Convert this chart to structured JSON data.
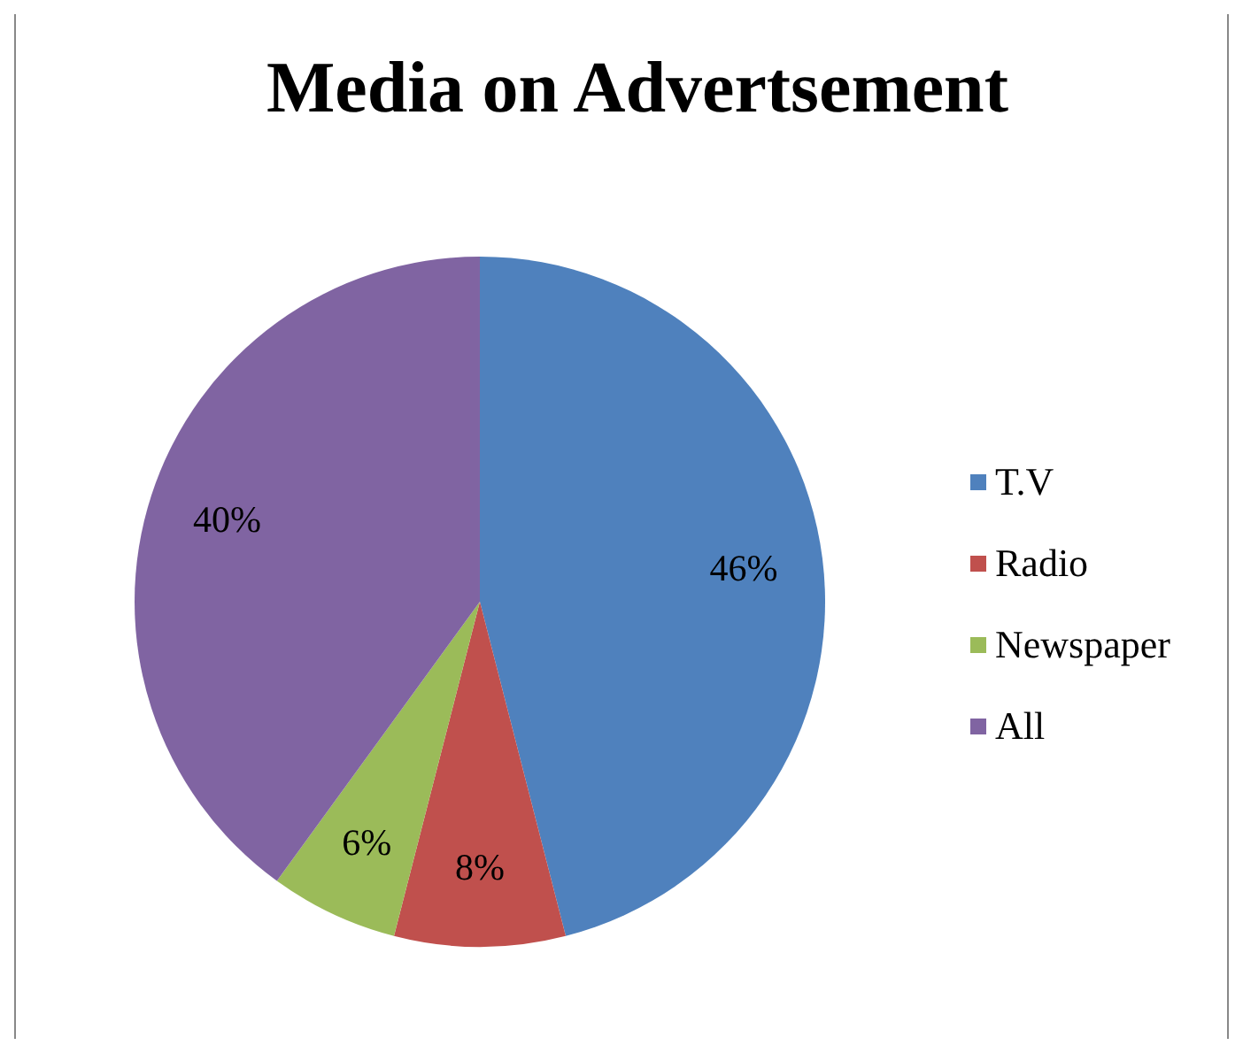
{
  "chart_data": {
    "type": "pie",
    "title": "Media on Advertsement",
    "categories": [
      "T.V",
      "Radio",
      "Newspaper",
      "All"
    ],
    "values": [
      46,
      8,
      6,
      40
    ],
    "colors": [
      "#4f81bd",
      "#c0504d",
      "#9bbb59",
      "#8064a2"
    ],
    "value_labels": [
      "46%",
      "8%",
      "6%",
      "40%"
    ],
    "legend": "right"
  }
}
